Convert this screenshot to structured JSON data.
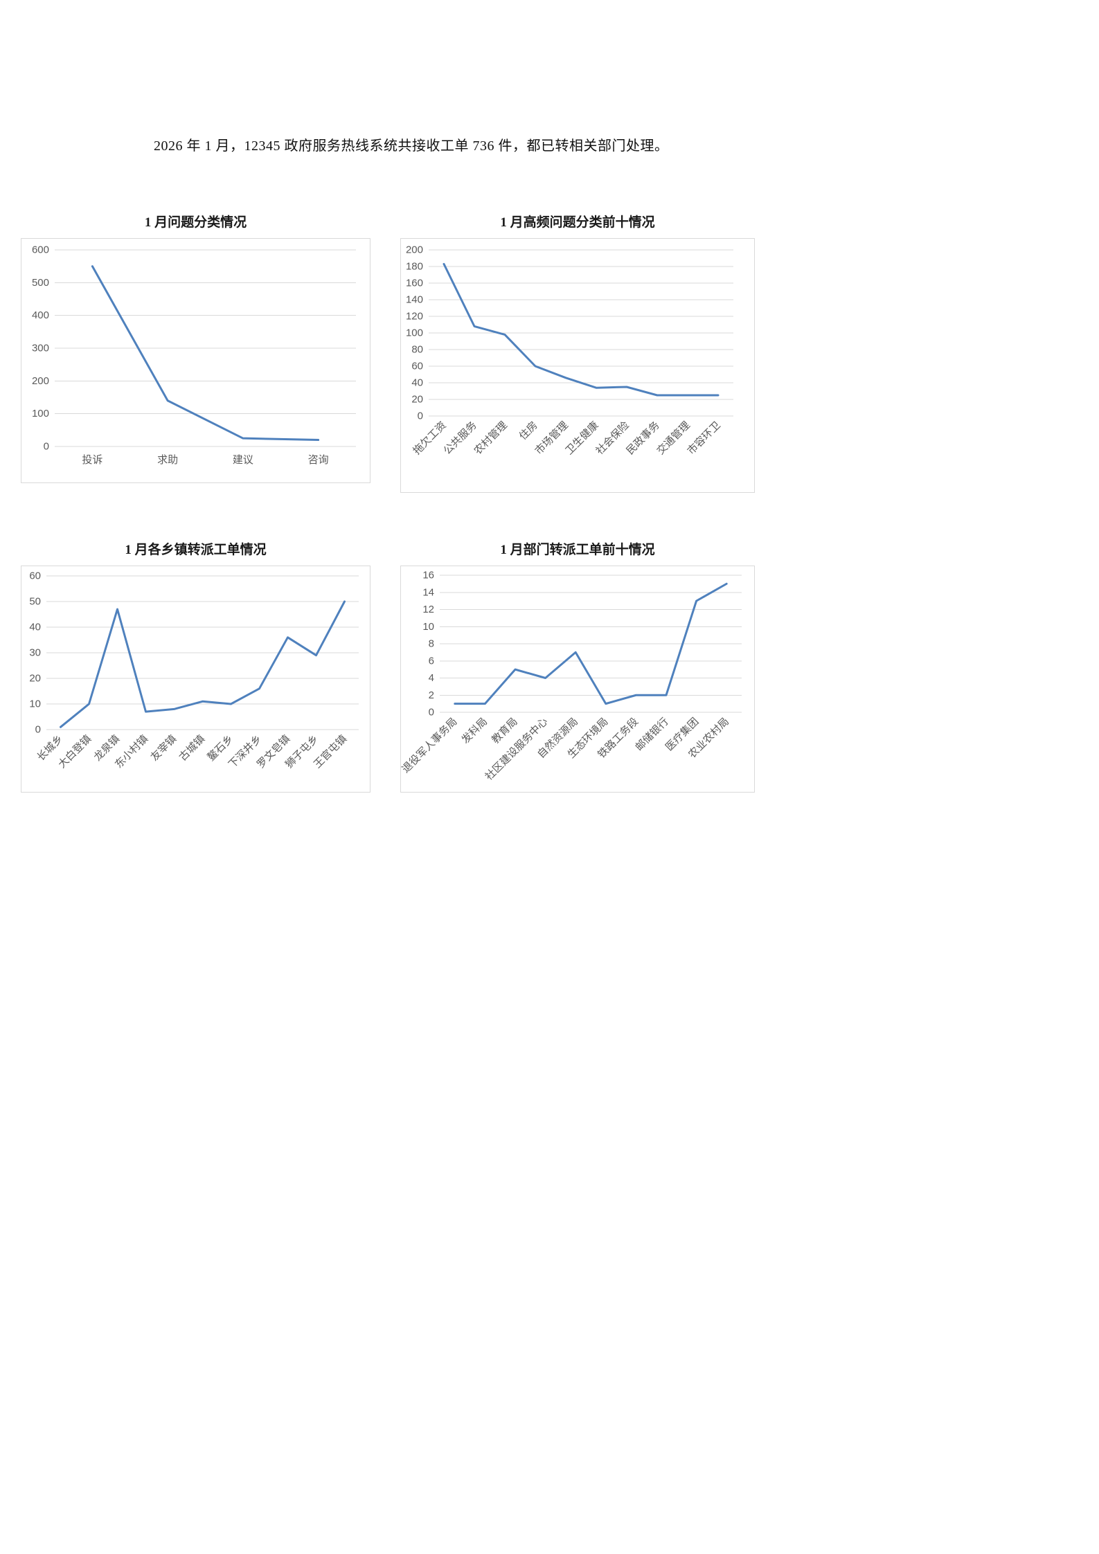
{
  "page": {
    "intro_text": "2026 年 1 月，12345 政府服务热线系统共接收工单 736 件，都已转相关部门处理。"
  },
  "style": {
    "line_color": "#4f81bd",
    "grid_color": "#d9d9d9",
    "axis_text_color": "#595959",
    "frame_border_color": "#d9d9d9"
  },
  "chart_data": [
    {
      "type": "line",
      "title": "1 月问题分类情况",
      "categories": [
        "投诉",
        "求助",
        "建议",
        "咨询"
      ],
      "values": [
        550,
        140,
        25,
        20
      ],
      "xlabel": "",
      "ylabel": "",
      "ylim": [
        0,
        600
      ],
      "ytick_step": 100,
      "label_rotation": 0,
      "grid": true,
      "legend": "none"
    },
    {
      "type": "line",
      "title": "1 月高频问题分类前十情况",
      "categories": [
        "拖欠工资",
        "公共服务",
        "农村管理",
        "住房",
        "市场管理",
        "卫生健康",
        "社会保险",
        "民政事务",
        "交通管理",
        "市容环卫"
      ],
      "values": [
        183,
        108,
        98,
        60,
        46,
        34,
        35,
        25,
        25,
        25
      ],
      "xlabel": "",
      "ylabel": "",
      "ylim": [
        0,
        200
      ],
      "ytick_step": 20,
      "label_rotation": -45,
      "grid": true,
      "legend": "none"
    },
    {
      "type": "line",
      "title": "1 月各乡镇转派工单情况",
      "categories": [
        "长城乡",
        "大白登镇",
        "龙泉镇",
        "东小村镇",
        "友宰镇",
        "古城镇",
        "鳌石乡",
        "下深井乡",
        "罗文皂镇",
        "狮子屯乡",
        "王官屯镇"
      ],
      "values": [
        1,
        10,
        47,
        7,
        8,
        11,
        10,
        16,
        36,
        29,
        50
      ],
      "xlabel": "",
      "ylabel": "",
      "ylim": [
        0,
        60
      ],
      "ytick_step": 10,
      "label_rotation": -45,
      "grid": true,
      "legend": "none"
    },
    {
      "type": "line",
      "title": "1 月部门转派工单前十情况",
      "categories": [
        "退役军人事务局",
        "发科局",
        "教育局",
        "社区建设服务中心",
        "自然资源局",
        "生态环境局",
        "铁路工务段",
        "邮储银行",
        "医疗集团",
        "农业农村局"
      ],
      "values": [
        1,
        1,
        5,
        4,
        7,
        1,
        2,
        2,
        13,
        15
      ],
      "xlabel": "",
      "ylabel": "",
      "ylim": [
        0,
        16
      ],
      "ytick_step": 2,
      "label_rotation": -45,
      "grid": true,
      "legend": "none"
    }
  ]
}
